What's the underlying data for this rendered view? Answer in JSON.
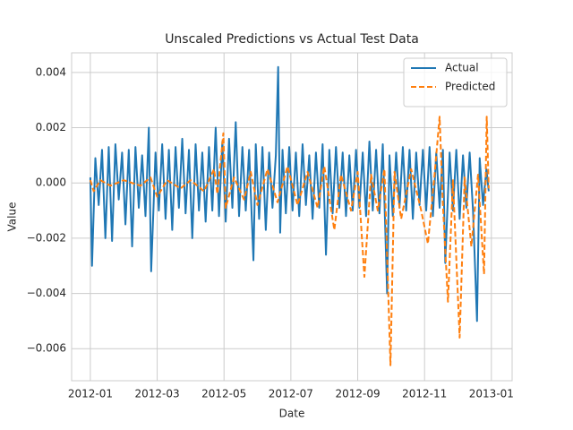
{
  "chart_data": {
    "type": "line",
    "title": "Unscaled Predictions vs Actual Test Data",
    "x_label": "Date",
    "y_label": "Value",
    "xlim": [
      -0.56,
      12.62
    ],
    "xticks": [
      {
        "value": 0,
        "label": "2012-01"
      },
      {
        "value": 2,
        "label": "2012-03"
      },
      {
        "value": 4,
        "label": "2012-05"
      },
      {
        "value": 6,
        "label": "2012-07"
      },
      {
        "value": 8,
        "label": "2012-09"
      },
      {
        "value": 10,
        "label": "2012-11"
      },
      {
        "value": 12,
        "label": "2013-01"
      }
    ],
    "ylim": [
      -0.00716,
      0.00471
    ],
    "yticks": [
      {
        "value": -0.006,
        "label": "−0.006"
      },
      {
        "value": -0.004,
        "label": "−0.004"
      },
      {
        "value": -0.002,
        "label": "−0.002"
      },
      {
        "value": 0,
        "label": "0.000"
      },
      {
        "value": 0.002,
        "label": "0.002"
      },
      {
        "value": 0.004,
        "label": "0.004"
      }
    ],
    "grid": true,
    "legend": "upper right",
    "series": [
      {
        "name": "Actual",
        "color": "#1f77b4",
        "dashed": false,
        "x": [
          0.0,
          0.05,
          0.15,
          0.25,
          0.35,
          0.45,
          0.55,
          0.65,
          0.75,
          0.85,
          0.95,
          1.05,
          1.15,
          1.25,
          1.35,
          1.45,
          1.55,
          1.65,
          1.75,
          1.82,
          1.95,
          2.05,
          2.15,
          2.25,
          2.35,
          2.45,
          2.55,
          2.65,
          2.75,
          2.85,
          2.95,
          3.05,
          3.15,
          3.25,
          3.35,
          3.45,
          3.55,
          3.65,
          3.75,
          3.85,
          3.95,
          4.05,
          4.15,
          4.25,
          4.35,
          4.45,
          4.55,
          4.65,
          4.75,
          4.88,
          4.95,
          5.05,
          5.15,
          5.25,
          5.35,
          5.45,
          5.55,
          5.62,
          5.68,
          5.75,
          5.85,
          5.95,
          6.05,
          6.15,
          6.25,
          6.35,
          6.45,
          6.55,
          6.65,
          6.75,
          6.85,
          6.95,
          7.05,
          7.15,
          7.25,
          7.35,
          7.45,
          7.55,
          7.65,
          7.75,
          7.85,
          7.95,
          8.05,
          8.15,
          8.25,
          8.35,
          8.45,
          8.55,
          8.65,
          8.75,
          8.88,
          8.95,
          9.05,
          9.15,
          9.25,
          9.35,
          9.45,
          9.55,
          9.65,
          9.75,
          9.85,
          9.95,
          10.05,
          10.15,
          10.25,
          10.35,
          10.45,
          10.55,
          10.62,
          10.75,
          10.85,
          10.95,
          11.05,
          11.15,
          11.25,
          11.35,
          11.45,
          11.57,
          11.65,
          11.75,
          11.85,
          11.92
        ],
        "values": [
          0.0002,
          -0.003,
          0.0009,
          -0.0008,
          0.0012,
          -0.002,
          0.0013,
          -0.0021,
          0.0014,
          -0.0006,
          0.0011,
          -0.0015,
          0.0012,
          -0.0023,
          0.0013,
          -0.0009,
          0.001,
          -0.0012,
          0.002,
          -0.0032,
          0.0011,
          -0.001,
          0.0014,
          -0.0013,
          0.0012,
          -0.0017,
          0.0013,
          -0.0009,
          0.0016,
          -0.0011,
          0.0012,
          -0.002,
          0.0014,
          -0.001,
          0.0011,
          -0.0014,
          0.0013,
          -0.001,
          0.002,
          -0.0012,
          0.0015,
          -0.0014,
          0.0016,
          -0.0009,
          0.0022,
          -0.0012,
          0.0013,
          -0.001,
          0.0012,
          -0.0028,
          0.0014,
          -0.0013,
          0.0013,
          -0.0017,
          0.0011,
          -0.0009,
          0.001,
          0.0042,
          -0.0018,
          0.0012,
          -0.0011,
          0.0013,
          -0.001,
          0.0011,
          -0.0012,
          0.0014,
          -0.0008,
          0.001,
          -0.0013,
          0.0011,
          -0.0009,
          0.0014,
          -0.0026,
          0.0012,
          -0.0011,
          0.0013,
          -0.0009,
          0.0011,
          -0.0012,
          0.001,
          -0.001,
          0.0012,
          -0.0009,
          0.0011,
          -0.0012,
          0.0015,
          -0.001,
          0.0012,
          -0.0011,
          0.0014,
          -0.004,
          0.001,
          -0.0012,
          0.0011,
          -0.0009,
          0.0013,
          -0.001,
          0.0012,
          -0.0013,
          0.0011,
          -0.0008,
          0.0012,
          -0.001,
          0.0013,
          -0.0012,
          0.0011,
          -0.0009,
          0.0012,
          -0.0029,
          0.0011,
          -0.001,
          0.0012,
          -0.0013,
          0.001,
          -0.0009,
          0.0011,
          -0.001,
          -0.005,
          0.0009,
          -0.0008,
          0.0005,
          -0.0003
        ]
      },
      {
        "name": "Predicted",
        "color": "#ff7f0e",
        "dashed": true,
        "x": [
          0.0,
          0.1,
          0.3,
          0.6,
          1.0,
          1.5,
          1.8,
          2.0,
          2.3,
          2.7,
          3.0,
          3.4,
          3.7,
          3.8,
          3.98,
          4.05,
          4.3,
          4.6,
          4.8,
          5.0,
          5.3,
          5.6,
          5.9,
          6.2,
          6.5,
          6.8,
          7.0,
          7.3,
          7.5,
          7.8,
          8.0,
          8.2,
          8.4,
          8.6,
          8.8,
          8.98,
          9.1,
          9.3,
          9.6,
          9.9,
          10.1,
          10.3,
          10.45,
          10.55,
          10.7,
          10.85,
          11.05,
          11.2,
          11.4,
          11.6,
          11.78,
          11.86,
          11.92
        ],
        "values": [
          0.0001,
          -0.0003,
          0.0001,
          -0.0001,
          0.0001,
          -0.0001,
          0.0002,
          -0.0005,
          0.0001,
          -0.0002,
          0.0001,
          -0.0003,
          0.0005,
          -0.0004,
          0.0018,
          -0.0009,
          0.0002,
          -0.0006,
          0.0004,
          -0.0008,
          0.0005,
          -0.0007,
          0.0006,
          -0.0008,
          0.0004,
          -0.0009,
          0.0006,
          -0.0017,
          0.0003,
          -0.001,
          0.0004,
          -0.0034,
          0.0003,
          -0.001,
          0.0005,
          -0.0066,
          0.0004,
          -0.0013,
          0.0005,
          -0.001,
          -0.0022,
          0.0003,
          0.0024,
          -0.0008,
          -0.0043,
          0.0001,
          -0.0056,
          0.0002,
          -0.0023,
          0.0003,
          -0.0033,
          0.0024,
          -0.0002
        ]
      }
    ]
  }
}
